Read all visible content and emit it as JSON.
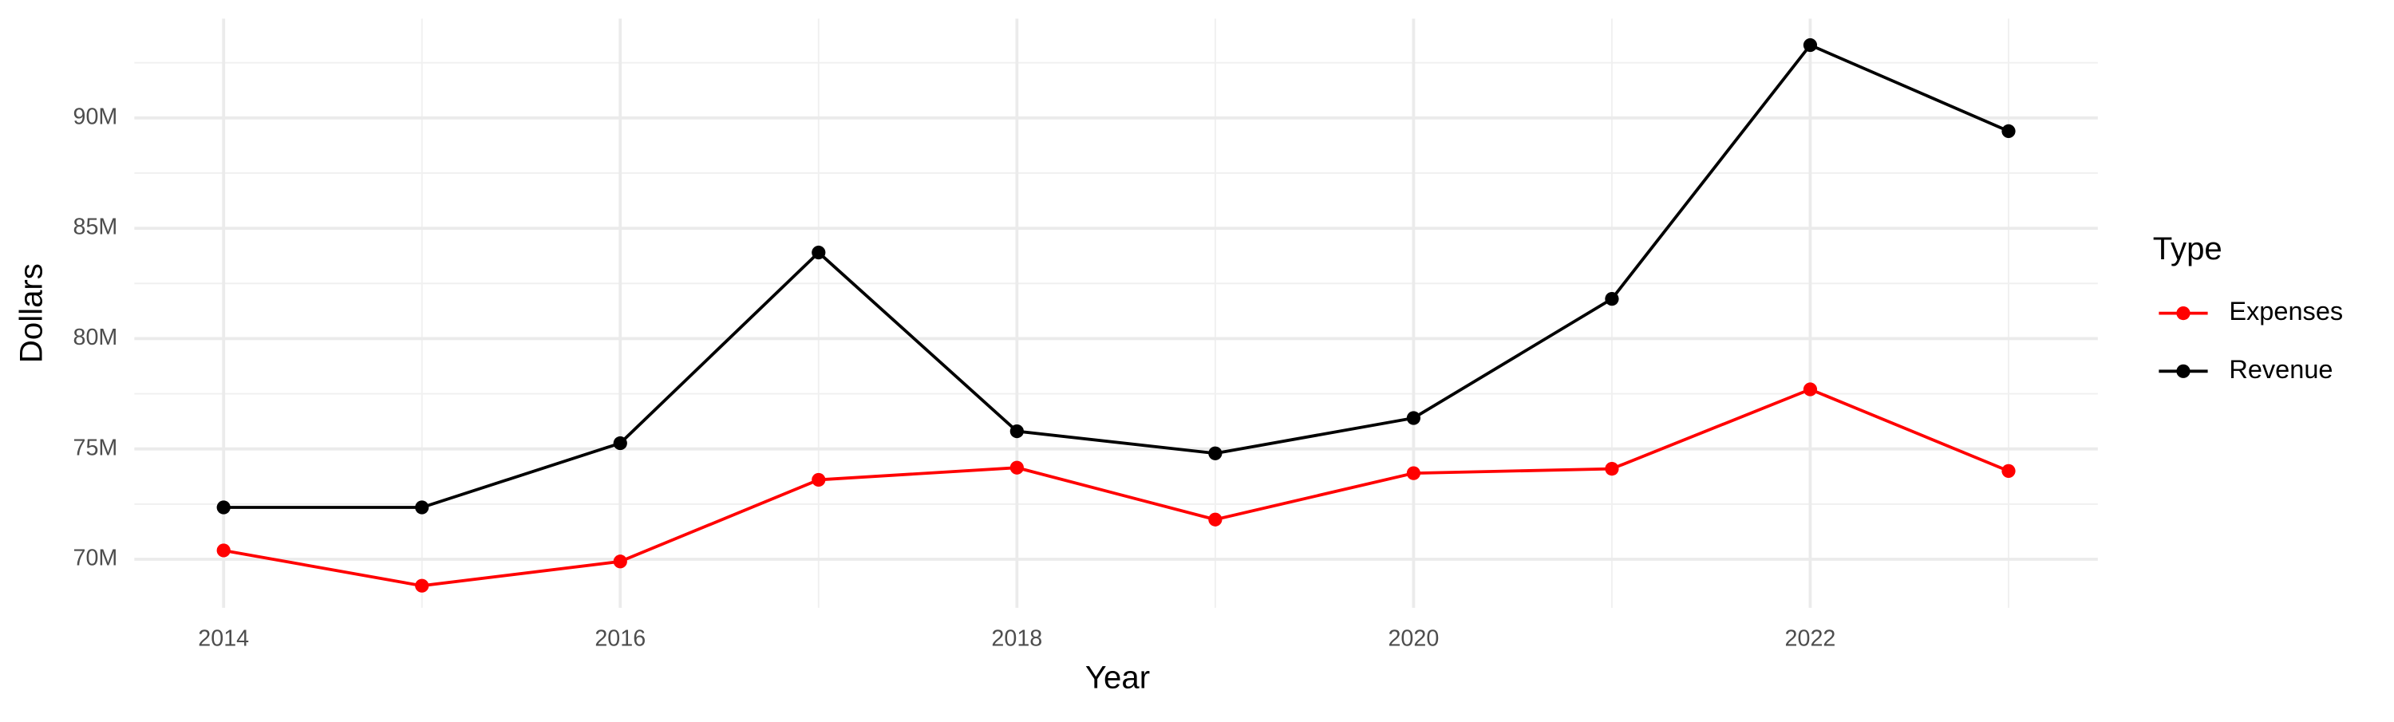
{
  "chart_data": {
    "type": "line",
    "x_label": "Year",
    "y_label": "Dollars",
    "legend_title": "Type",
    "x": [
      2014,
      2015,
      2016,
      2017,
      2018,
      2019,
      2020,
      2021,
      2022,
      2023
    ],
    "series": [
      {
        "name": "Expenses",
        "color": "#ff0000",
        "values": [
          70400000,
          68800000,
          69900000,
          73600000,
          74150000,
          71800000,
          73900000,
          74100000,
          77700000,
          74000000
        ]
      },
      {
        "name": "Revenue",
        "color": "#000000",
        "values": [
          72350000,
          72350000,
          75260000,
          83900000,
          75800000,
          74800000,
          76400000,
          81800000,
          93300000,
          89400000
        ]
      }
    ],
    "xlim": [
      2013.55,
      2023.45
    ],
    "xticks": [
      2014,
      2016,
      2018,
      2020,
      2022
    ],
    "ylim": [
      67800000,
      94500000
    ],
    "yticks": [
      {
        "value": 70000000,
        "label": "70M"
      },
      {
        "value": 75000000,
        "label": "75M"
      },
      {
        "value": 80000000,
        "label": "80M"
      },
      {
        "value": 85000000,
        "label": "85M"
      },
      {
        "value": 90000000,
        "label": "90M"
      }
    ],
    "grid": true,
    "legend": "right"
  }
}
